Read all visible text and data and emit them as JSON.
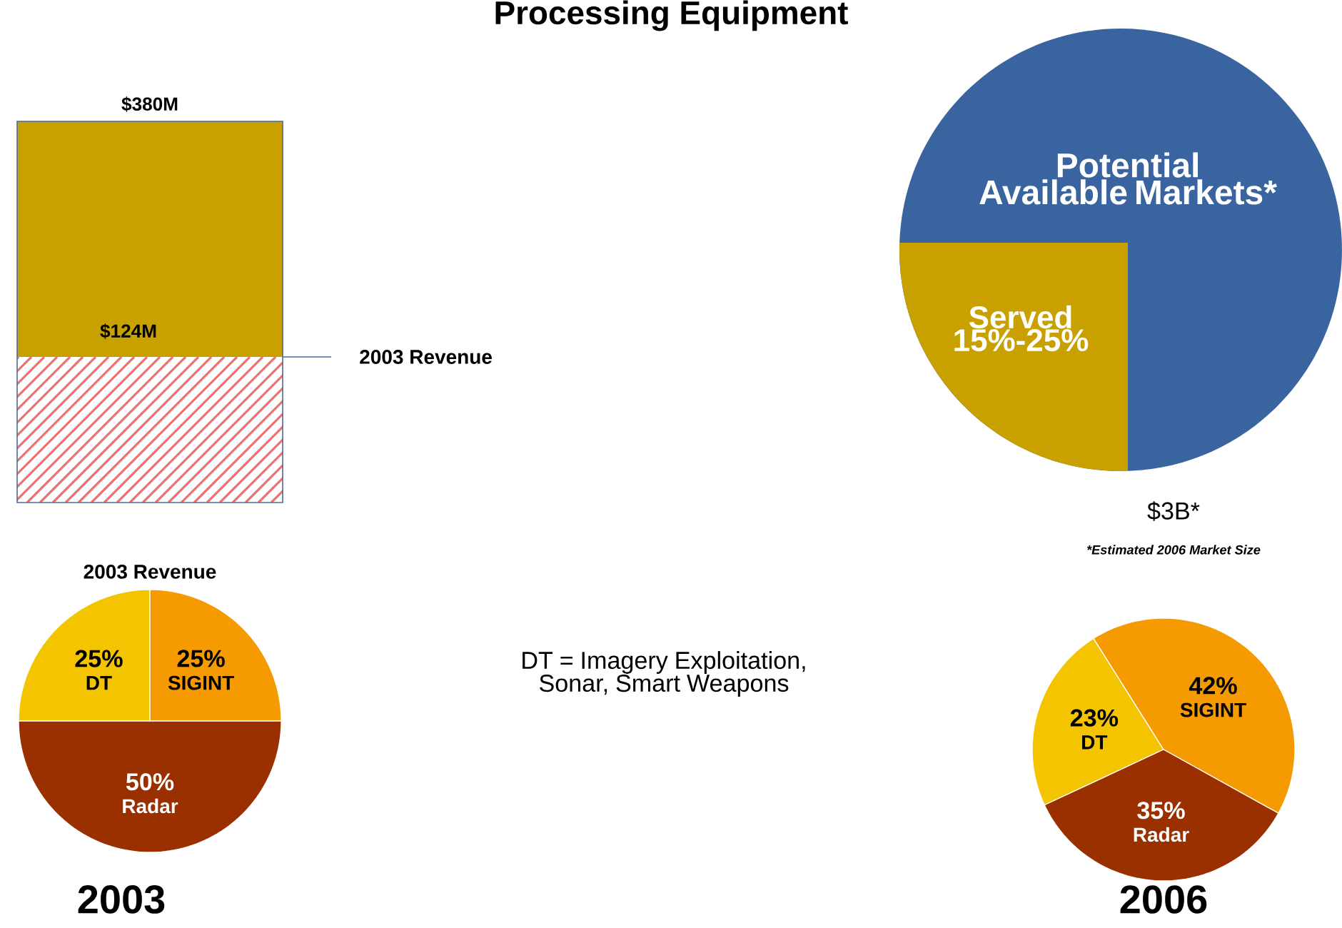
{
  "chart_data": [
    {
      "type": "other",
      "title": "Processing Equipment",
      "annotations": [
        "$380M",
        "$124M",
        "2003 Revenue",
        "Potential Available Markets*",
        "Served 15%-25%",
        "$3B*",
        "*Estimated 2006 Market Size",
        "DT = Imagery Exploitation, Sonar, Smart Weapons"
      ]
    },
    {
      "type": "pie",
      "title": "2003 Revenue",
      "xlabel": "2003",
      "categories": [
        "DT",
        "SIGINT",
        "Radar"
      ],
      "values": [
        25,
        25,
        50
      ],
      "value_labels": [
        "25%",
        "25%",
        "50%"
      ],
      "colors": [
        "#f5c400",
        "#f59a00",
        "#9a3000"
      ]
    },
    {
      "type": "pie",
      "xlabel": "2006",
      "categories": [
        "DT",
        "SIGINT",
        "Radar"
      ],
      "values": [
        23,
        42,
        35
      ],
      "value_labels": [
        "23%",
        "42%",
        "35%"
      ],
      "colors": [
        "#f5c400",
        "#f59a00",
        "#9a3000"
      ]
    }
  ]
}
